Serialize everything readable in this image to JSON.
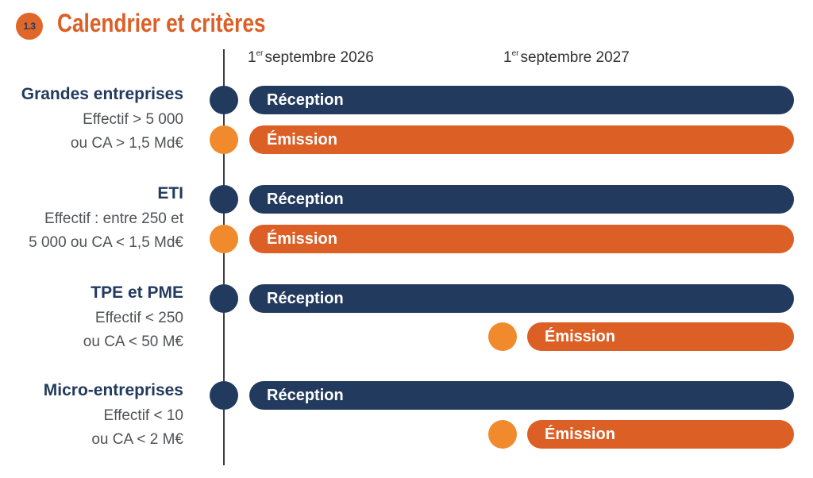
{
  "header": {
    "badge": "1.3",
    "title": "Calendrier et critères"
  },
  "timeline": {
    "dates": [
      {
        "sup": "er",
        "prefix": "1",
        "label": "septembre 2026"
      },
      {
        "sup": "er",
        "prefix": "1",
        "label": "septembre 2027"
      }
    ]
  },
  "colors": {
    "navy": "#223A5E",
    "orange_bar": "#DC5F26",
    "orange_dot": "#F08A2C"
  },
  "groups": [
    {
      "name": "Grandes entreprises",
      "desc_line1": "Effectif > 5 000",
      "desc_line2": "ou CA > 1,5 Md€",
      "reception": {
        "label": "Réception",
        "start": "1er septembre 2026"
      },
      "emission": {
        "label": "Émission",
        "start": "1er septembre 2026"
      }
    },
    {
      "name": "ETI",
      "desc_line1": "Effectif : entre 250 et",
      "desc_line2": "5 000 ou CA < 1,5 Md€",
      "reception": {
        "label": "Réception",
        "start": "1er septembre 2026"
      },
      "emission": {
        "label": "Émission",
        "start": "1er septembre 2026"
      }
    },
    {
      "name": "TPE et PME",
      "desc_line1": "Effectif < 250",
      "desc_line2": "ou CA < 50 M€",
      "reception": {
        "label": "Réception",
        "start": "1er septembre 2026"
      },
      "emission": {
        "label": "Émission",
        "start": "1er septembre 2027"
      }
    },
    {
      "name": "Micro-entreprises",
      "desc_line1": "Effectif < 10",
      "desc_line2": "ou CA < 2 M€",
      "reception": {
        "label": "Réception",
        "start": "1er septembre 2026"
      },
      "emission": {
        "label": "Émission",
        "start": "1er septembre 2027"
      }
    }
  ]
}
